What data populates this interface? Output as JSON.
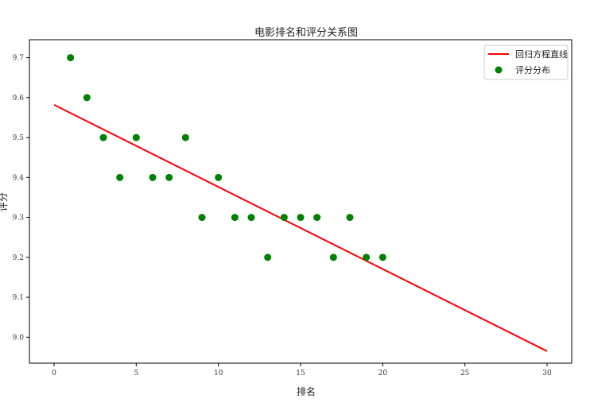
{
  "chart_data": {
    "type": "scatter",
    "title": "电影排名和评分关系图",
    "xlabel": "排名",
    "ylabel": "评分",
    "xlim": [
      -1.5,
      31.5
    ],
    "ylim": [
      8.935,
      9.745
    ],
    "xticks": [
      0,
      5,
      10,
      15,
      20,
      25,
      30
    ],
    "yticks": [
      9.0,
      9.1,
      9.2,
      9.3,
      9.4,
      9.5,
      9.6,
      9.7
    ],
    "grid": false,
    "legend_position": "top-right",
    "series": [
      {
        "name": "回归方程直线",
        "kind": "line",
        "color": "#ff0000",
        "x": [
          0,
          30
        ],
        "y": [
          9.582,
          8.965
        ]
      },
      {
        "name": "评分分布",
        "kind": "scatter",
        "color": "#008000",
        "x": [
          1,
          2,
          3,
          4,
          5,
          6,
          7,
          8,
          9,
          10,
          11,
          12,
          13,
          14,
          15,
          16,
          17,
          18,
          19,
          20
        ],
        "y": [
          9.7,
          9.6,
          9.5,
          9.4,
          9.5,
          9.4,
          9.4,
          9.5,
          9.3,
          9.4,
          9.3,
          9.3,
          9.2,
          9.3,
          9.3,
          9.3,
          9.2,
          9.3,
          9.2,
          9.2
        ]
      }
    ]
  }
}
